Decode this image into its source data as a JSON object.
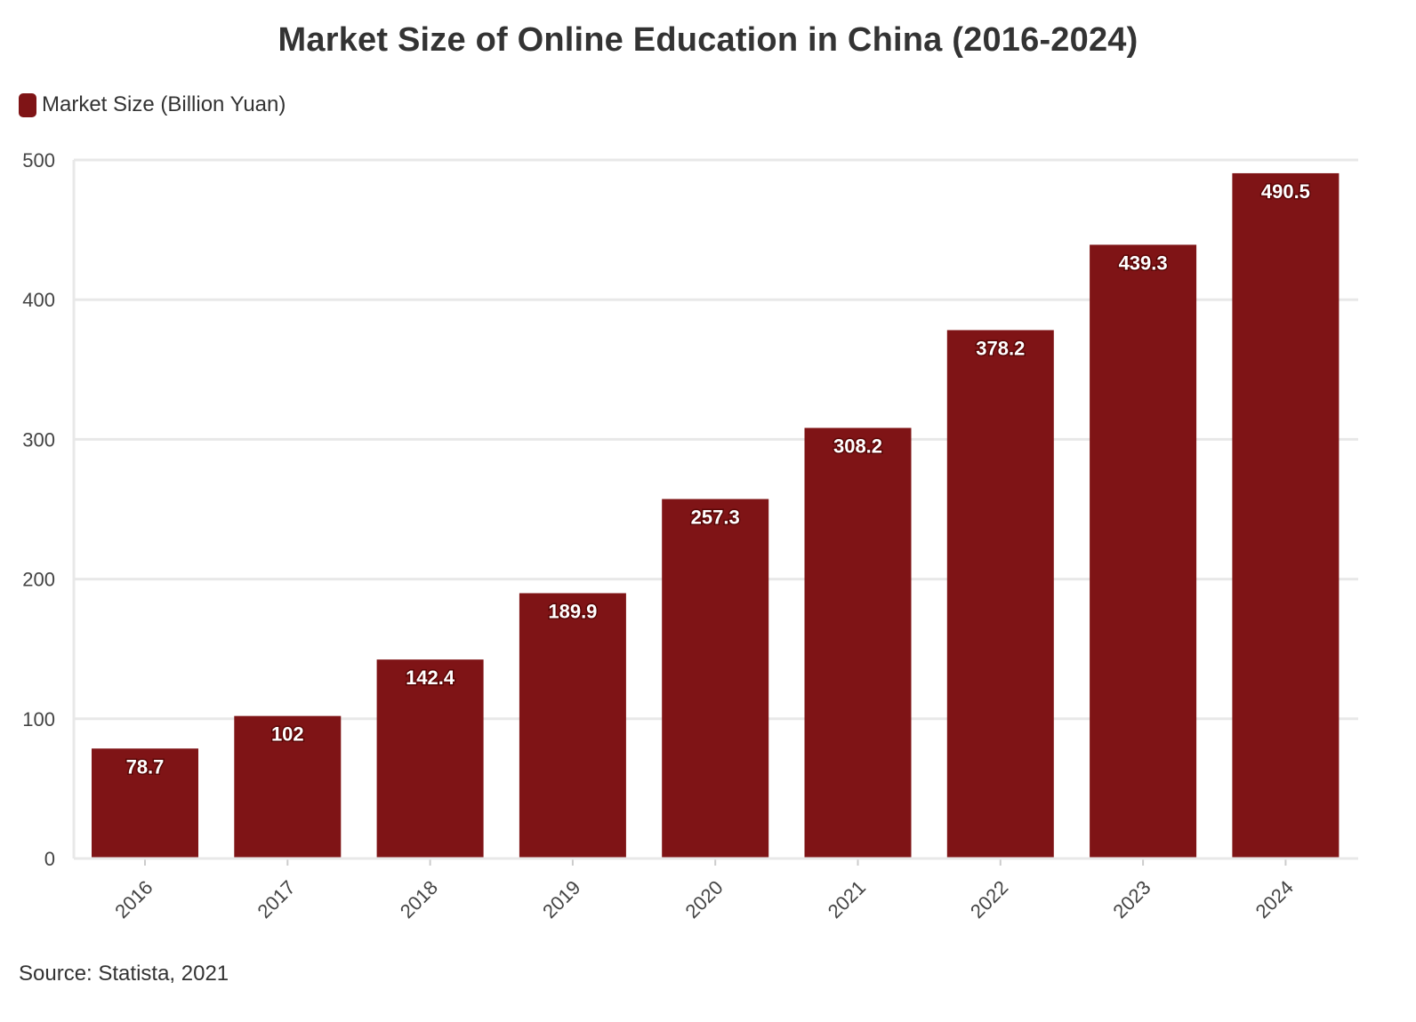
{
  "chart_data": {
    "type": "bar",
    "title": "Market Size of Online Education in China (2016-2024)",
    "categories": [
      "2016",
      "2017",
      "2018",
      "2019",
      "2020",
      "2021",
      "2022",
      "2023",
      "2024"
    ],
    "series": [
      {
        "name": "Market Size (Billion Yuan)",
        "values": [
          78.7,
          102,
          142.4,
          189.9,
          257.3,
          308.2,
          378.2,
          439.3,
          490.5
        ],
        "color": "#7f1416"
      }
    ],
    "data_labels": [
      "78.7",
      "102",
      "142.4",
      "189.9",
      "257.3",
      "308.2",
      "378.2",
      "439.3",
      "490.5"
    ],
    "xlabel": "",
    "ylabel": "",
    "ylim": [
      0,
      500
    ],
    "yticks": [
      0,
      100,
      200,
      300,
      400,
      500
    ],
    "grid": true,
    "legend_position": "top-left",
    "source": "Source: Statista, 2021"
  }
}
